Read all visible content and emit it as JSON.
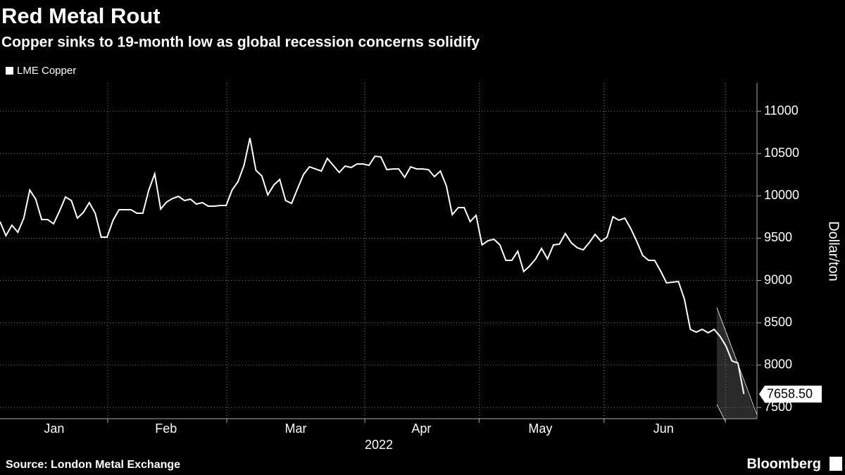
{
  "chart_data": {
    "type": "line",
    "title": "Red Metal Rout",
    "subtitle": "Copper sinks to 19-month low as global recession concerns solidify",
    "source": "Source: London Metal Exchange",
    "brand": "Bloomberg",
    "xlabel": "2022",
    "ylabel": "Dollar/ton",
    "series": [
      {
        "name": "LME Copper",
        "color": "#ffffff",
        "values": [
          9695,
          9530,
          9653,
          9570,
          9737,
          10069,
          9961,
          9720,
          9720,
          9670,
          9820,
          9986,
          9944,
          9737,
          9803,
          9920,
          9795,
          9512,
          9512,
          9712,
          9836,
          9836,
          9836,
          9795,
          9795,
          10069,
          10260,
          9844,
          9928,
          9969,
          9994,
          9944,
          9961,
          9903,
          9920,
          9878,
          9878,
          9886,
          9886,
          10069,
          10169,
          10360,
          10684,
          10302,
          10235,
          10011,
          10127,
          10194,
          9944,
          9911,
          10086,
          10252,
          10343,
          10318,
          10293,
          10443,
          10360,
          10277,
          10352,
          10335,
          10377,
          10377,
          10360,
          10468,
          10460,
          10310,
          10318,
          10318,
          10219,
          10343,
          10318,
          10318,
          10310,
          10227,
          10293,
          10119,
          9778,
          9861,
          9861,
          9695,
          9770,
          9421,
          9470,
          9487,
          9421,
          9238,
          9238,
          9346,
          9105,
          9171,
          9254,
          9379,
          9254,
          9421,
          9429,
          9554,
          9445,
          9387,
          9362,
          9445,
          9545,
          9462,
          9512,
          9753,
          9712,
          9737,
          9612,
          9462,
          9296,
          9238,
          9238,
          9113,
          8972,
          8980,
          8988,
          8781,
          8423,
          8390,
          8423,
          8382,
          8423,
          8340,
          8224,
          8049,
          8024,
          7658.5
        ],
        "value_labels": [
          null,
          null,
          null,
          null,
          null,
          null,
          null,
          null,
          null,
          null,
          null,
          null,
          null,
          null,
          null,
          null,
          null,
          null,
          null,
          null,
          null,
          null,
          null,
          null,
          null,
          null,
          null,
          null,
          null,
          null,
          null,
          null,
          null,
          null,
          null,
          null,
          null,
          null,
          null,
          null,
          null,
          null,
          null,
          null,
          null,
          null,
          null,
          null,
          null,
          null,
          null,
          null,
          null,
          null,
          null,
          null,
          null,
          null,
          null,
          null,
          null,
          null,
          null,
          null,
          null,
          null,
          null,
          null,
          null,
          null,
          null,
          null,
          null,
          null,
          null,
          null,
          null,
          null,
          null,
          null,
          null,
          null,
          null,
          null,
          null,
          null,
          null,
          null,
          null,
          null,
          null,
          null,
          null,
          null,
          null,
          null,
          null,
          null,
          null,
          null,
          null,
          null,
          null,
          null,
          null,
          null,
          null,
          null,
          null,
          null,
          null,
          null,
          null,
          null,
          null,
          null,
          null,
          null,
          null,
          null,
          null,
          null,
          null,
          null,
          null,
          "7658.50"
        ]
      }
    ],
    "xlim": [
      0,
      127.2
    ],
    "xticks": [
      {
        "value": 9.1,
        "label": "Jan"
      },
      {
        "value": 27.9,
        "label": "Feb"
      },
      {
        "value": 49.7,
        "label": "Mar"
      },
      {
        "value": 70.8,
        "label": "Apr"
      },
      {
        "value": 90.8,
        "label": "May"
      },
      {
        "value": 111.5,
        "label": "Jun"
      }
    ],
    "xgrid": [
      18.1,
      38.1,
      61.3,
      80.5,
      101.5,
      121.9
    ],
    "ylim": [
      7367,
      11333
    ],
    "yticks": [
      7500,
      8000,
      8500,
      9000,
      9500,
      10000,
      10500,
      11000
    ],
    "grid": true
  }
}
